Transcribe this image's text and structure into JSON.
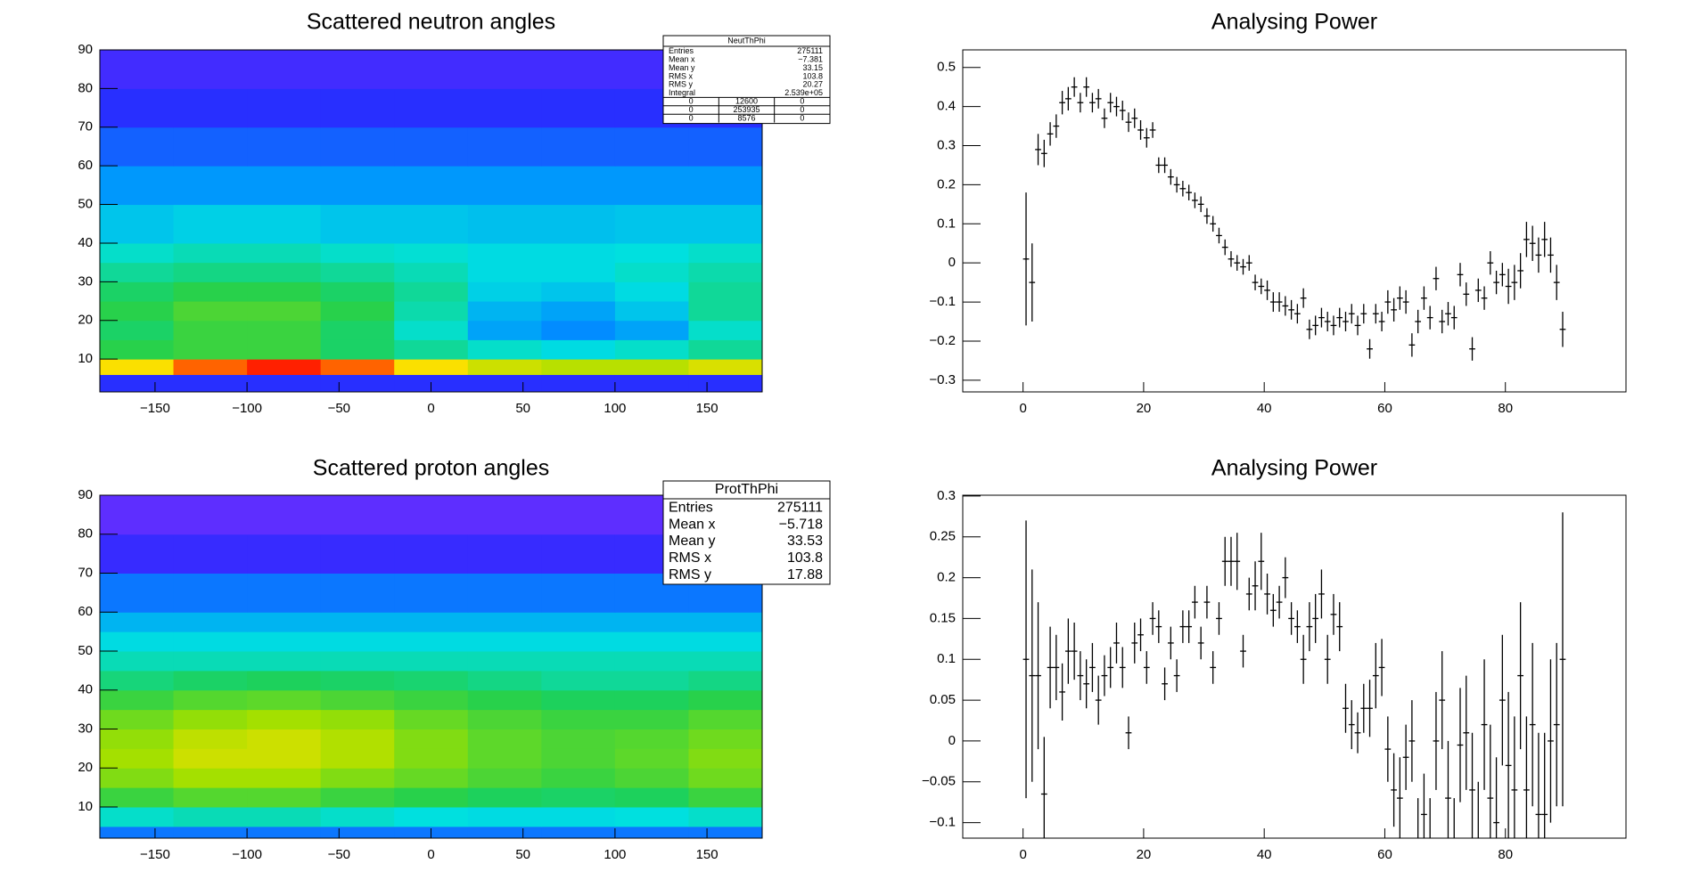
{
  "chart_data": [
    {
      "type": "heatmap",
      "title": "Scattered neutron angles",
      "xlim": [
        -180,
        180
      ],
      "ylim": [
        1.5,
        90
      ],
      "xticks": [
        {
          "value": -150,
          "label": "−150"
        },
        {
          "value": -100,
          "label": "−100"
        },
        {
          "value": -50,
          "label": "−50"
        },
        0,
        50,
        100,
        150
      ],
      "yticks": [
        10,
        20,
        30,
        40,
        50,
        60,
        70,
        80,
        90
      ],
      "palette": [
        "#7a30ff",
        "#2a2aff",
        "#0090ff",
        "#00e0e0",
        "#20d050",
        "#a0e000",
        "#ffe000",
        "#ff2000"
      ],
      "xbins": [
        -180,
        -140,
        -100,
        -60,
        -20,
        20,
        60,
        100,
        140,
        180
      ],
      "ybins": [
        1.5,
        6,
        10,
        15,
        20,
        25,
        30,
        35,
        40,
        50,
        60,
        70,
        80,
        90
      ],
      "z": [
        [
          0.15,
          0.15,
          0.15,
          0.15,
          0.15,
          0.15,
          0.15,
          0.15,
          0.15
        ],
        [
          0.85,
          0.95,
          1,
          0.95,
          0.85,
          0.78,
          0.75,
          0.75,
          0.8
        ],
        [
          0.58,
          0.6,
          0.6,
          0.55,
          0.5,
          0.45,
          0.42,
          0.45,
          0.5
        ],
        [
          0.55,
          0.6,
          0.6,
          0.55,
          0.45,
          0.32,
          0.28,
          0.32,
          0.45
        ],
        [
          0.58,
          0.62,
          0.62,
          0.58,
          0.48,
          0.35,
          0.32,
          0.38,
          0.5
        ],
        [
          0.55,
          0.58,
          0.58,
          0.55,
          0.5,
          0.4,
          0.38,
          0.42,
          0.5
        ],
        [
          0.5,
          0.52,
          0.52,
          0.5,
          0.47,
          0.42,
          0.42,
          0.45,
          0.48
        ],
        [
          0.45,
          0.47,
          0.47,
          0.45,
          0.44,
          0.42,
          0.42,
          0.43,
          0.45
        ],
        [
          0.38,
          0.4,
          0.4,
          0.38,
          0.38,
          0.37,
          0.37,
          0.38,
          0.38
        ],
        [
          0.3,
          0.3,
          0.3,
          0.3,
          0.3,
          0.3,
          0.3,
          0.3,
          0.3
        ],
        [
          0.22,
          0.22,
          0.22,
          0.22,
          0.22,
          0.22,
          0.22,
          0.22,
          0.22
        ],
        [
          0.15,
          0.15,
          0.15,
          0.15,
          0.15,
          0.15,
          0.15,
          0.15,
          0.15
        ],
        [
          0.1,
          0.1,
          0.1,
          0.1,
          0.1,
          0.1,
          0.1,
          0.1,
          0.1
        ]
      ],
      "stats": {
        "title": "NeutThPhi",
        "rows": [
          [
            "Entries",
            275111
          ],
          [
            "Mean x",
            "−7.381"
          ],
          [
            "Mean y",
            33.15
          ],
          [
            "RMS x",
            103.8
          ],
          [
            "RMS y",
            20.27
          ],
          [
            "Integral",
            "2.539e+05"
          ]
        ],
        "table": [
          [
            0,
            12600,
            0
          ],
          [
            0,
            253935,
            0
          ],
          [
            0,
            8576,
            0
          ]
        ]
      }
    },
    {
      "type": "errorbar",
      "title": "Analysing Power",
      "xlim": [
        -10,
        100
      ],
      "ylim": [
        -0.33,
        0.545
      ],
      "xticks": [
        0,
        20,
        40,
        60,
        80
      ],
      "yticks": [
        {
          "value": -0.3,
          "label": "−0.3"
        },
        {
          "value": -0.2,
          "label": "−0.2"
        },
        {
          "value": -0.1,
          "label": "−0.1"
        },
        0,
        0.1,
        0.2,
        0.3,
        0.4,
        0.5
      ],
      "xerr": 0.5,
      "x": [
        0.5,
        1.5,
        2.5,
        3.5,
        4.5,
        5.5,
        6.5,
        7.5,
        8.5,
        9.5,
        10.5,
        11.5,
        12.5,
        13.5,
        14.5,
        15.5,
        16.5,
        17.5,
        18.5,
        19.5,
        20.5,
        21.5,
        22.5,
        23.5,
        24.5,
        25.5,
        26.5,
        27.5,
        28.5,
        29.5,
        30.5,
        31.5,
        32.5,
        33.5,
        34.5,
        35.5,
        36.5,
        37.5,
        38.5,
        39.5,
        40.5,
        41.5,
        42.5,
        43.5,
        44.5,
        45.5,
        46.5,
        47.5,
        48.5,
        49.5,
        50.5,
        51.5,
        52.5,
        53.5,
        54.5,
        55.5,
        56.5,
        57.5,
        58.5,
        59.5,
        60.5,
        61.5,
        62.5,
        63.5,
        64.5,
        65.5,
        66.5,
        67.5,
        68.5,
        69.5,
        70.5,
        71.5,
        72.5,
        73.5,
        74.5,
        75.5,
        76.5,
        77.5,
        78.5,
        79.5,
        80.5,
        81.5,
        82.5,
        83.5,
        84.5,
        85.5,
        86.5,
        87.5,
        88.5,
        89.5
      ],
      "values": [
        0.01,
        -0.05,
        0.29,
        0.28,
        0.33,
        0.35,
        0.41,
        0.42,
        0.45,
        0.41,
        0.45,
        0.41,
        0.42,
        0.37,
        0.41,
        0.4,
        0.39,
        0.36,
        0.37,
        0.34,
        0.32,
        0.34,
        0.25,
        0.25,
        0.22,
        0.2,
        0.19,
        0.18,
        0.16,
        0.15,
        0.12,
        0.1,
        0.07,
        0.04,
        0.01,
        0,
        -0.01,
        0,
        -0.05,
        -0.06,
        -0.07,
        -0.1,
        -0.1,
        -0.11,
        -0.12,
        -0.13,
        -0.09,
        -0.17,
        -0.16,
        -0.14,
        -0.15,
        -0.16,
        -0.14,
        -0.15,
        -0.13,
        -0.16,
        -0.13,
        -0.22,
        -0.13,
        -0.15,
        -0.1,
        -0.12,
        -0.09,
        -0.1,
        -0.21,
        -0.15,
        -0.09,
        -0.14,
        -0.04,
        -0.15,
        -0.13,
        -0.14,
        -0.03,
        -0.08,
        -0.22,
        -0.07,
        -0.09,
        0,
        -0.05,
        -0.03,
        -0.06,
        -0.05,
        -0.02,
        0.06,
        0.05,
        0.02,
        0.06,
        0.02,
        -0.05,
        -0.17
      ],
      "errors": [
        0.17,
        0.1,
        0.04,
        0.035,
        0.03,
        0.03,
        0.03,
        0.03,
        0.025,
        0.025,
        0.025,
        0.025,
        0.025,
        0.025,
        0.025,
        0.025,
        0.025,
        0.025,
        0.025,
        0.025,
        0.025,
        0.02,
        0.02,
        0.02,
        0.02,
        0.02,
        0.02,
        0.02,
        0.02,
        0.02,
        0.02,
        0.02,
        0.02,
        0.02,
        0.02,
        0.02,
        0.02,
        0.02,
        0.02,
        0.02,
        0.025,
        0.025,
        0.025,
        0.025,
        0.025,
        0.025,
        0.025,
        0.025,
        0.025,
        0.025,
        0.025,
        0.025,
        0.025,
        0.025,
        0.025,
        0.025,
        0.025,
        0.025,
        0.025,
        0.025,
        0.03,
        0.03,
        0.03,
        0.03,
        0.03,
        0.03,
        0.03,
        0.03,
        0.03,
        0.03,
        0.03,
        0.03,
        0.03,
        0.03,
        0.03,
        0.03,
        0.03,
        0.03,
        0.03,
        0.03,
        0.045,
        0.045,
        0.045,
        0.045,
        0.045,
        0.045,
        0.045,
        0.045,
        0.045,
        0.045
      ]
    },
    {
      "type": "heatmap",
      "title": "Scattered proton angles",
      "xlim": [
        -180,
        180
      ],
      "ylim": [
        2,
        90
      ],
      "xticks": [
        {
          "value": -150,
          "label": "−150"
        },
        {
          "value": -100,
          "label": "−100"
        },
        {
          "value": -50,
          "label": "−50"
        },
        0,
        50,
        100,
        150
      ],
      "yticks": [
        10,
        20,
        30,
        40,
        50,
        60,
        70,
        80,
        90
      ],
      "palette": [
        "#7a30ff",
        "#2a2aff",
        "#0090ff",
        "#00e0e0",
        "#20d050",
        "#a0e000",
        "#ffe000",
        "#ff2000"
      ],
      "xbins": [
        -180,
        -140,
        -100,
        -60,
        -20,
        20,
        60,
        100,
        140,
        180
      ],
      "ybins": [
        2,
        5,
        10,
        15,
        20,
        25,
        30,
        35,
        40,
        45,
        50,
        55,
        60,
        70,
        80,
        90
      ],
      "z": [
        [
          0.25,
          0.25,
          0.25,
          0.25,
          0.25,
          0.25,
          0.25,
          0.25,
          0.25
        ],
        [
          0.45,
          0.47,
          0.47,
          0.45,
          0.43,
          0.42,
          0.42,
          0.43,
          0.45
        ],
        [
          0.6,
          0.63,
          0.63,
          0.6,
          0.58,
          0.56,
          0.55,
          0.56,
          0.6
        ],
        [
          0.68,
          0.72,
          0.72,
          0.68,
          0.65,
          0.62,
          0.6,
          0.62,
          0.66
        ],
        [
          0.72,
          0.78,
          0.78,
          0.74,
          0.68,
          0.64,
          0.62,
          0.64,
          0.68
        ],
        [
          0.7,
          0.76,
          0.78,
          0.74,
          0.68,
          0.64,
          0.62,
          0.63,
          0.66
        ],
        [
          0.66,
          0.7,
          0.72,
          0.7,
          0.65,
          0.62,
          0.6,
          0.6,
          0.63
        ],
        [
          0.6,
          0.63,
          0.64,
          0.62,
          0.6,
          0.58,
          0.56,
          0.56,
          0.58
        ],
        [
          0.53,
          0.55,
          0.56,
          0.55,
          0.54,
          0.52,
          0.5,
          0.5,
          0.52
        ],
        [
          0.47,
          0.47,
          0.47,
          0.47,
          0.47,
          0.47,
          0.47,
          0.47,
          0.47
        ],
        [
          0.42,
          0.42,
          0.42,
          0.42,
          0.42,
          0.42,
          0.42,
          0.42,
          0.42
        ],
        [
          0.35,
          0.35,
          0.35,
          0.35,
          0.35,
          0.35,
          0.35,
          0.35,
          0.35
        ],
        [
          0.25,
          0.25,
          0.25,
          0.25,
          0.25,
          0.25,
          0.25,
          0.25,
          0.25
        ],
        [
          0.12,
          0.12,
          0.12,
          0.12,
          0.12,
          0.12,
          0.12,
          0.12,
          0.12
        ],
        [
          0.05,
          0.05,
          0.05,
          0.05,
          0.05,
          0.05,
          0.05,
          0.05,
          0.05
        ]
      ],
      "stats": {
        "title": "ProtThPhi",
        "rows": [
          [
            "Entries",
            275111
          ],
          [
            "Mean x",
            "−5.718"
          ],
          [
            "Mean y",
            33.53
          ],
          [
            "RMS x",
            103.8
          ],
          [
            "RMS y",
            17.88
          ]
        ]
      }
    },
    {
      "type": "errorbar",
      "title": "Analysing Power",
      "xlim": [
        -10,
        100
      ],
      "ylim": [
        -0.119,
        0.301
      ],
      "xticks": [
        0,
        20,
        40,
        60,
        80
      ],
      "yticks": [
        {
          "value": -0.1,
          "label": "−0.1"
        },
        {
          "value": -0.05,
          "label": "−0.05"
        },
        0,
        0.05,
        0.1,
        0.15,
        0.2,
        0.25,
        0.3
      ],
      "xerr": 0.5,
      "x": [
        0.5,
        1.5,
        2.5,
        3.5,
        4.5,
        5.5,
        6.5,
        7.5,
        8.5,
        9.5,
        10.5,
        11.5,
        12.5,
        13.5,
        14.5,
        15.5,
        16.5,
        17.5,
        18.5,
        19.5,
        20.5,
        21.5,
        22.5,
        23.5,
        24.5,
        25.5,
        26.5,
        27.5,
        28.5,
        29.5,
        30.5,
        31.5,
        32.5,
        33.5,
        34.5,
        35.5,
        36.5,
        37.5,
        38.5,
        39.5,
        40.5,
        41.5,
        42.5,
        43.5,
        44.5,
        45.5,
        46.5,
        47.5,
        48.5,
        49.5,
        50.5,
        51.5,
        52.5,
        53.5,
        54.5,
        55.5,
        56.5,
        57.5,
        58.5,
        59.5,
        60.5,
        61.5,
        62.5,
        63.5,
        64.5,
        65.5,
        66.5,
        67.5,
        68.5,
        69.5,
        70.5,
        71.5,
        72.5,
        73.5,
        74.5,
        75.5,
        76.5,
        77.5,
        78.5,
        79.5,
        80.5,
        81.5,
        82.5,
        83.5,
        84.5,
        85.5,
        86.5,
        87.5,
        88.5,
        89.5
      ],
      "values": [
        0.1,
        0.08,
        0.08,
        -0.065,
        0.09,
        0.09,
        0.06,
        0.11,
        0.11,
        0.08,
        0.07,
        0.09,
        0.05,
        0.08,
        0.09,
        0.12,
        0.09,
        0.01,
        0.12,
        0.13,
        0.09,
        0.15,
        0.14,
        0.07,
        0.12,
        0.08,
        0.14,
        0.14,
        0.17,
        0.12,
        0.17,
        0.09,
        0.15,
        0.22,
        0.22,
        0.22,
        0.11,
        0.18,
        0.19,
        0.22,
        0.18,
        0.16,
        0.17,
        0.2,
        0.15,
        0.14,
        0.1,
        0.14,
        0.15,
        0.18,
        0.1,
        0.155,
        0.14,
        0.04,
        0.02,
        0.01,
        0.04,
        0.04,
        0.08,
        0.09,
        -0.01,
        -0.06,
        -0.07,
        -0.02,
        0,
        -0.13,
        -0.09,
        -0.13,
        0,
        0.05,
        -0.07,
        -0.13,
        -0.005,
        0.01,
        -0.06,
        -0.13,
        0.02,
        -0.07,
        -0.1,
        0.05,
        -0.03,
        -0.06,
        0.08,
        -0.06,
        0.02,
        -0.09,
        -0.09,
        0,
        0.02,
        0.1
      ],
      "errors": [
        0.17,
        0.13,
        0.09,
        0.07,
        0.05,
        0.04,
        0.035,
        0.04,
        0.035,
        0.03,
        0.03,
        0.03,
        0.03,
        0.025,
        0.025,
        0.025,
        0.025,
        0.02,
        0.025,
        0.02,
        0.02,
        0.02,
        0.02,
        0.02,
        0.02,
        0.02,
        0.02,
        0.02,
        0.02,
        0.02,
        0.02,
        0.02,
        0.02,
        0.03,
        0.03,
        0.035,
        0.02,
        0.02,
        0.03,
        0.035,
        0.025,
        0.02,
        0.02,
        0.025,
        0.02,
        0.02,
        0.03,
        0.03,
        0.03,
        0.03,
        0.03,
        0.025,
        0.03,
        0.03,
        0.03,
        0.025,
        0.03,
        0.035,
        0.04,
        0.035,
        0.04,
        0.045,
        0.05,
        0.04,
        0.05,
        0.06,
        0.05,
        0.06,
        0.06,
        0.06,
        0.07,
        0.06,
        0.07,
        0.07,
        0.07,
        0.08,
        0.08,
        0.09,
        0.08,
        0.08,
        0.09,
        0.09,
        0.09,
        0.09,
        0.1,
        0.1,
        0.1,
        0.1,
        0.1,
        0.18
      ]
    }
  ]
}
